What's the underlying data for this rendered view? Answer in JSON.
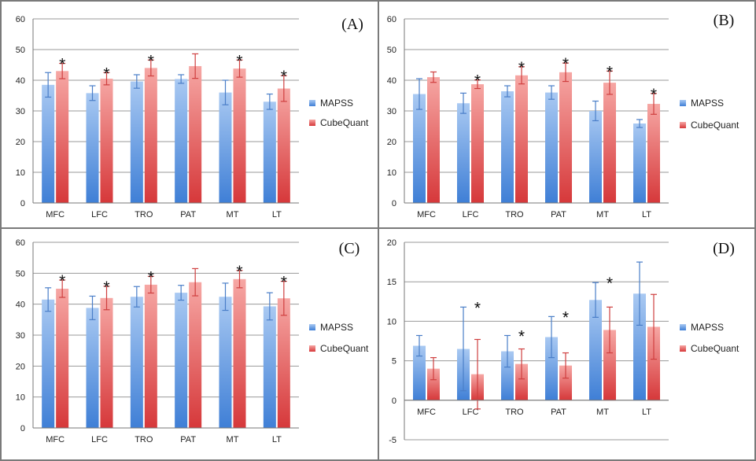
{
  "colors": {
    "mapss_light": "#a9c9f2",
    "mapss_dark": "#3f7fd6",
    "cube_light": "#f6a7a4",
    "cube_dark": "#d6383a",
    "error_mapss": "#4a7ec8",
    "error_cube": "#cf3f3f",
    "grid": "#9a9a9a",
    "border": "#7a7a7a"
  },
  "chart_data": [
    {
      "type": "bar",
      "panel_label": "(A)",
      "categories": [
        "MFC",
        "LFC",
        "TRO",
        "PAT",
        "MT",
        "LT"
      ],
      "ylim": [
        0,
        60
      ],
      "yticks": [
        "0",
        "10",
        "20",
        "30",
        "40",
        "50",
        "60"
      ],
      "series": [
        {
          "name": "MAPSS",
          "values": [
            38.5,
            35.8,
            39.6,
            40.4,
            36.0,
            33.0
          ],
          "errors": [
            4.0,
            2.4,
            2.2,
            1.4,
            4.0,
            2.5
          ]
        },
        {
          "name": "CubeQuant",
          "values": [
            43.0,
            40.5,
            44.0,
            44.6,
            43.8,
            37.3
          ],
          "errors": [
            2.5,
            2.0,
            2.6,
            4.0,
            2.8,
            4.2
          ]
        }
      ],
      "significance": [
        "*",
        "*",
        "*",
        "",
        "*",
        "*"
      ]
    },
    {
      "type": "bar",
      "panel_label": "(B)",
      "categories": [
        "MFC",
        "LFC",
        "TRO",
        "PAT",
        "MT",
        "LT"
      ],
      "ylim": [
        0,
        60
      ],
      "yticks": [
        "0",
        "10",
        "20",
        "30",
        "40",
        "50",
        "60"
      ],
      "series": [
        {
          "name": "MAPSS",
          "values": [
            35.5,
            32.5,
            36.4,
            36.0,
            30.0,
            25.9
          ],
          "errors": [
            5.0,
            3.3,
            1.8,
            2.2,
            3.2,
            1.3
          ]
        },
        {
          "name": "CubeQuant",
          "values": [
            41.0,
            38.7,
            41.6,
            42.6,
            39.2,
            32.3
          ],
          "errors": [
            1.7,
            1.4,
            2.8,
            3.0,
            3.8,
            3.4
          ]
        }
      ],
      "significance": [
        "",
        "*",
        "*",
        "*",
        "*",
        "*"
      ]
    },
    {
      "type": "bar",
      "panel_label": "(C)",
      "categories": [
        "MFC",
        "LFC",
        "TRO",
        "PAT",
        "MT",
        "LT"
      ],
      "ylim": [
        0,
        60
      ],
      "yticks": [
        "0",
        "10",
        "20",
        "30",
        "40",
        "50",
        "60"
      ],
      "series": [
        {
          "name": "MAPSS",
          "values": [
            41.5,
            38.8,
            42.4,
            43.7,
            42.4,
            39.3
          ],
          "errors": [
            3.8,
            3.8,
            3.3,
            2.4,
            4.4,
            4.4
          ]
        },
        {
          "name": "CubeQuant",
          "values": [
            45.0,
            42.0,
            46.3,
            47.1,
            48.1,
            41.9
          ],
          "errors": [
            2.8,
            3.8,
            2.7,
            4.4,
            2.8,
            5.5
          ]
        }
      ],
      "significance": [
        "*",
        "*",
        "*",
        "",
        "*",
        "*"
      ]
    },
    {
      "type": "bar",
      "panel_label": "(D)",
      "categories": [
        "MFC",
        "LFC",
        "TRO",
        "PAT",
        "MT",
        "LT"
      ],
      "ylim": [
        -5,
        20
      ],
      "yticks": [
        "-5",
        "0",
        "5",
        "10",
        "15",
        "20"
      ],
      "series": [
        {
          "name": "MAPSS",
          "values": [
            6.9,
            6.5,
            6.2,
            8.0,
            12.7,
            13.5
          ],
          "errors": [
            1.3,
            5.3,
            2.0,
            2.6,
            2.2,
            4.0
          ]
        },
        {
          "name": "CubeQuant",
          "values": [
            4.0,
            3.3,
            4.6,
            4.4,
            8.9,
            9.3
          ],
          "errors": [
            1.4,
            4.4,
            1.9,
            1.6,
            2.9,
            4.1
          ]
        }
      ],
      "significance": [
        "",
        "*",
        "*",
        "*",
        "*",
        ""
      ]
    }
  ]
}
